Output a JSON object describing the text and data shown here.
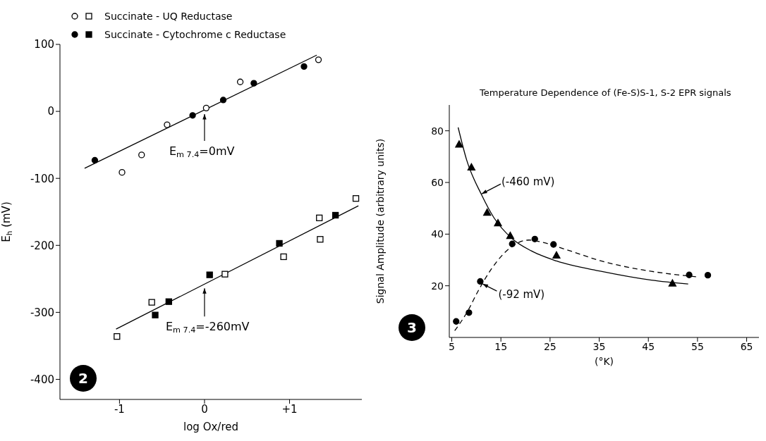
{
  "chart_data": [
    {
      "type": "scatter",
      "xlabel": "log Ox/red",
      "ylabel": "E$_{h}$ (mV)",
      "xlim": [
        -1.7,
        1.85
      ],
      "ylim": [
        -430,
        100
      ],
      "xticks": [
        -1,
        0,
        {
          "value": 1,
          "label": "+1"
        }
      ],
      "yticks": [
        -400,
        -300,
        -200,
        -100,
        0,
        100
      ],
      "legend": "top left",
      "series": [
        {
          "marker": "circle",
          "color": "#ffffff",
          "x": [
            -0.97,
            -0.74,
            -0.44,
            0.02,
            0.42,
            1.34
          ],
          "values": [
            -91,
            -65,
            -20,
            5,
            44,
            77
          ]
        },
        {
          "name": "Succinate - UQ Reductase",
          "marker": "square",
          "color": "#ffffff",
          "x": [
            -1.03,
            -0.62,
            0.24,
            0.93,
            1.35,
            1.36,
            1.78
          ],
          "values": [
            -336,
            -285,
            -243,
            -217,
            -159,
            -191,
            -130
          ]
        },
        {
          "marker": "circle",
          "color": "#000000",
          "x": [
            -1.29,
            -0.14,
            0.22,
            0.58,
            1.17
          ],
          "values": [
            -73,
            -6,
            17,
            42,
            67
          ]
        },
        {
          "name": "Succinate - Cytochrome c Reductase",
          "marker": "square",
          "color": "#000000",
          "x": [
            -0.58,
            -0.42,
            0.06,
            0.88,
            1.54
          ],
          "values": [
            -304,
            -284,
            -244,
            -197,
            -155
          ]
        },
        {
          "type": "line",
          "marker": "none",
          "line_style": "solid",
          "color": "#000000",
          "x": [
            -1.41,
            1.32
          ],
          "values": [
            -85,
            84
          ]
        },
        {
          "type": "line",
          "marker": "none",
          "line_style": "solid",
          "color": "#000000",
          "x": [
            -1.04,
            1.81
          ],
          "values": [
            -325,
            -141
          ]
        }
      ],
      "annotations": [
        {
          "text": "E$_{m 7.4}$=0mV",
          "x": 0,
          "y": -4
        },
        {
          "text": "E$_{m 7.4}$=-260mV",
          "x": 0,
          "y": -264
        },
        "2"
      ]
    },
    {
      "type": "scatter",
      "title": "Temperature Dependence of (Fe-S)S-1, S-2 EPR signals",
      "xlabel": "(°K)",
      "ylabel": "Signal Amplitude (arbitrary units)",
      "xlim": [
        4.5,
        67.5
      ],
      "ylim": [
        0,
        90
      ],
      "xticks": [
        5,
        15,
        25,
        35,
        45,
        55,
        65
      ],
      "yticks": [
        20,
        40,
        60,
        80
      ],
      "series": [
        {
          "marker": "triangle",
          "color": "#000000",
          "x": [
            6.5,
            9.0,
            12.2,
            14.4,
            16.9,
            26.3,
            49.9
          ],
          "values": [
            74.8,
            65.9,
            48.4,
            44.3,
            39.4,
            31.8,
            21.0
          ]
        },
        {
          "marker": "circle",
          "color": "#000000",
          "x": [
            5.9,
            8.5,
            10.8,
            17.3,
            21.9,
            25.7,
            53.3,
            57.1
          ],
          "values": [
            6.2,
            9.6,
            21.7,
            36.2,
            38.1,
            36.0,
            24.2,
            24.1
          ]
        },
        {
          "type": "line",
          "marker": "none",
          "line_style": "solid",
          "color": "#000000",
          "x": [
            6.3,
            8.0,
            11.1,
            13.6,
            17.2,
            21.2,
            26.3,
            35.4,
            45.6,
            53.1
          ],
          "values": [
            81.3,
            68.9,
            55.1,
            46.3,
            38.4,
            33.5,
            29.6,
            25.6,
            22.2,
            20.7
          ]
        },
        {
          "type": "line",
          "marker": "none",
          "line_style": "dashed",
          "color": "#000000",
          "x": [
            5.6,
            8.0,
            10.6,
            13.1,
            15.6,
            18.2,
            20.7,
            23.3,
            28.3,
            35.4,
            45.6,
            54.7
          ],
          "values": [
            2.6,
            9.4,
            18.8,
            26.6,
            32.5,
            36.4,
            37.7,
            36.9,
            34.0,
            29.6,
            25.6,
            23.5
          ]
        }
      ],
      "annotations": [
        {
          "text": "(-460 mV)",
          "x": 11.1,
          "y": 55.6
        },
        {
          "text": "(-92 mV)",
          "x": 11.3,
          "y": 20.7
        },
        "3"
      ]
    }
  ]
}
